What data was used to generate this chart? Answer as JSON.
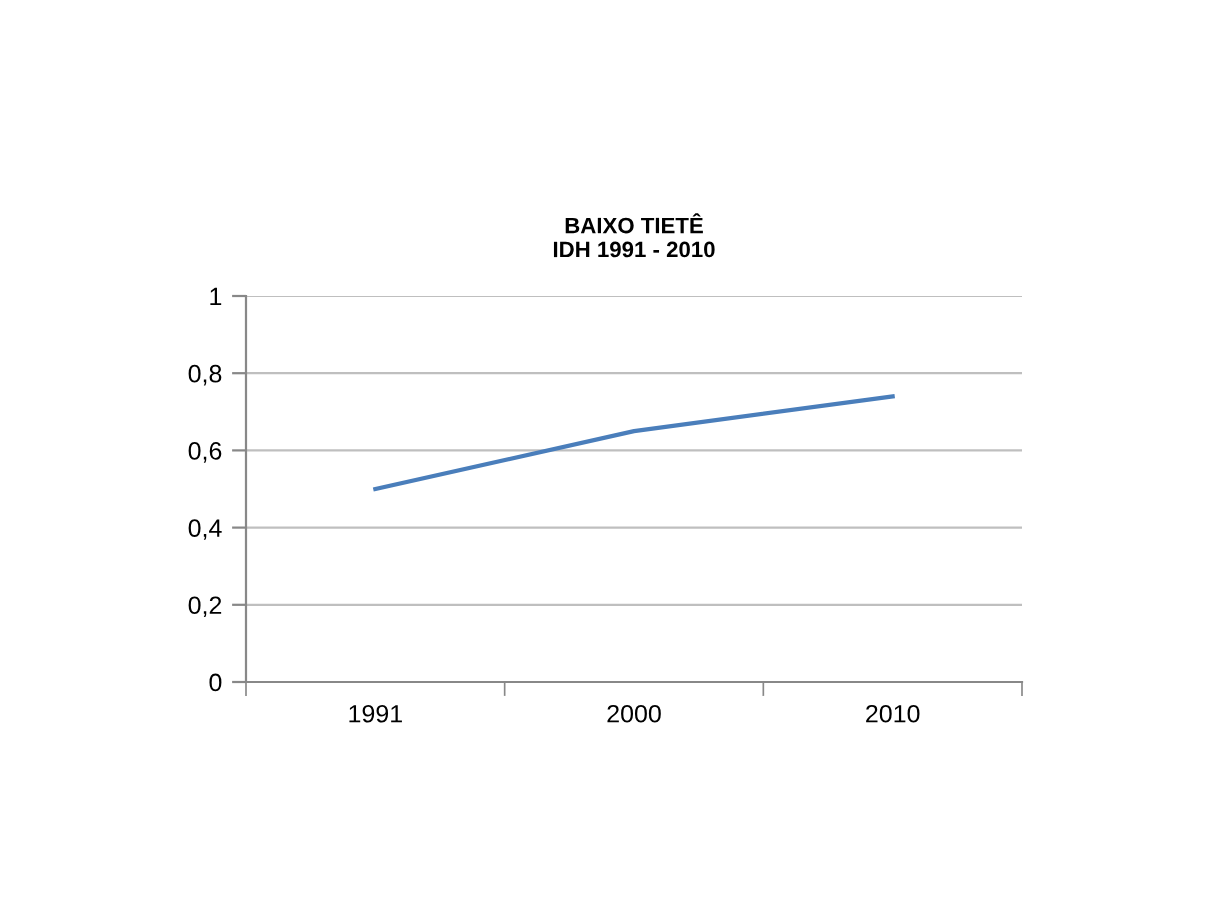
{
  "chart_data": {
    "type": "line",
    "title": "BAIXO TIETÊ\nIDH 1991 - 2010",
    "categories": [
      "1991",
      "2000",
      "2010"
    ],
    "series": [
      {
        "color": "#4a7ebb",
        "values": [
          0.5,
          0.65,
          0.74
        ]
      }
    ],
    "ylim": [
      0,
      1
    ],
    "yticks": [
      0,
      {
        "value": 0.2,
        "label": "0,2"
      },
      {
        "value": 0.4,
        "label": "0,4"
      },
      {
        "value": 0.6,
        "label": "0,6"
      },
      {
        "value": 0.8,
        "label": "0,8"
      },
      1
    ],
    "grid": "y",
    "legend": false,
    "marker": "none",
    "line_style": "solid"
  }
}
